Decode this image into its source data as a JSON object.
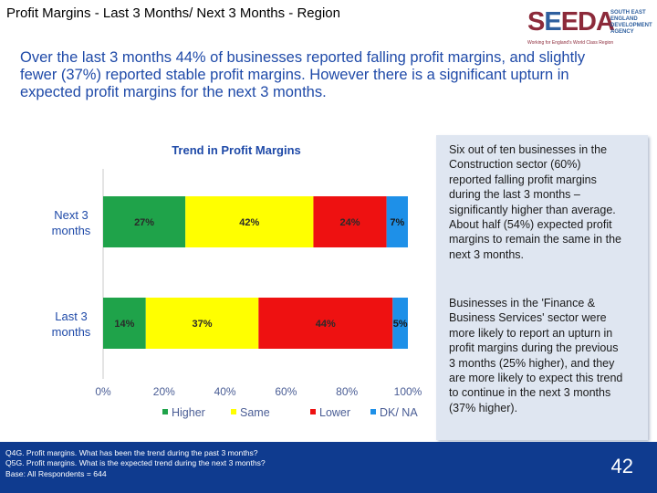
{
  "slide": {
    "title": "Profit Margins - Last 3 Months/ Next 3 Months - Region",
    "intro": "Over the last 3 months 44% of businesses reported falling profit margins, and slightly fewer (37%) reported stable profit margins. However there is a significant upturn in expected profit margins for the next 3 months.",
    "page_number": "42"
  },
  "logo": {
    "mark_pre": "S",
    "mark_e": "E",
    "mark_post": "EDA",
    "side_text": "SOUTH EAST ENGLAND DEVELOPMENT AGENCY",
    "tagline": "Working for England's World Class Region"
  },
  "sidebar": {
    "paragraph1": "Six out of ten businesses in the Construction sector (60%) reported falling profit margins during the last 3 months – significantly higher than average. About half (54%) expected profit margins to remain the same in the next 3 months.",
    "paragraph2": "Businesses in the 'Finance & Business Services' sector were more likely to report an upturn in profit margins during the previous 3 months (25% higher), and they are more likely to expect this trend to continue in the next 3 months (37% higher)."
  },
  "footer": {
    "note1": "Q4G. Profit margins. What has been the trend during the past 3 months?",
    "note2": "Q5G. Profit margins. What is the expected trend during the next 3 months?",
    "note3": "Base: All Respondents = 644"
  },
  "chart_data": {
    "type": "bar",
    "orientation": "horizontal",
    "stacked": true,
    "title": "Trend in Profit Margins",
    "categories": [
      "Next 3 months",
      "Last 3 months"
    ],
    "series": [
      {
        "name": "Higher",
        "color": "#1fa34a",
        "values": [
          27,
          14
        ]
      },
      {
        "name": "Same",
        "color": "#ffff00",
        "values": [
          42,
          37
        ]
      },
      {
        "name": "Lower",
        "color": "#ee1111",
        "values": [
          24,
          44
        ]
      },
      {
        "name": "DK/ NA",
        "color": "#1e90e8",
        "values": [
          7,
          5
        ]
      }
    ],
    "data_labels": [
      [
        "27%",
        "42%",
        "24%",
        "7%"
      ],
      [
        "14%",
        "37%",
        "44%",
        "5%"
      ]
    ],
    "xticks": [
      "0%",
      "20%",
      "40%",
      "60%",
      "80%",
      "100%"
    ],
    "xlim": [
      0,
      100
    ],
    "legend": "bottom",
    "category_label_color": "#1f4aa8",
    "tick_label_color": "#4a5d95",
    "title_color": "#1f4aa8"
  }
}
